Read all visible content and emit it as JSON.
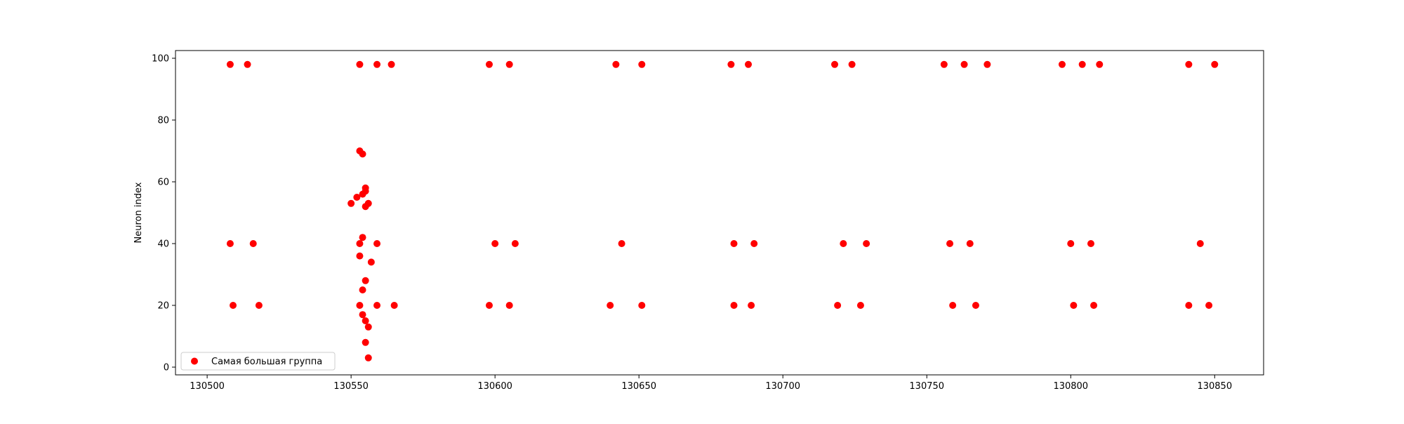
{
  "chart_data": {
    "type": "scatter",
    "title": "",
    "xlabel": "",
    "ylabel": "Neuron index",
    "xlim": [
      130489,
      130867
    ],
    "ylim": [
      -2.5,
      102.5
    ],
    "xticks": [
      130500,
      130550,
      130600,
      130650,
      130700,
      130750,
      130800,
      130850
    ],
    "xtick_labels": [
      "130500",
      "130550",
      "130600",
      "130650",
      "130700",
      "130750",
      "130800",
      "130850"
    ],
    "yticks": [
      0,
      20,
      40,
      60,
      80,
      100
    ],
    "ytick_labels": [
      "0",
      "20",
      "40",
      "60",
      "80",
      "100"
    ],
    "grid": false,
    "legend_position": "lower-left",
    "marker_color": "#ff0000",
    "series": [
      {
        "name": "Самая большая группа",
        "color": "#ff0000",
        "points": [
          [
            130508,
            98
          ],
          [
            130514,
            98
          ],
          [
            130508,
            40
          ],
          [
            130516,
            40
          ],
          [
            130509,
            20
          ],
          [
            130518,
            20
          ],
          [
            130553,
            98
          ],
          [
            130559,
            98
          ],
          [
            130564,
            98
          ],
          [
            130550,
            53
          ],
          [
            130552,
            55
          ],
          [
            130553,
            70
          ],
          [
            130554,
            69
          ],
          [
            130554,
            56
          ],
          [
            130555,
            52
          ],
          [
            130555,
            57
          ],
          [
            130555,
            58
          ],
          [
            130556,
            53
          ],
          [
            130553,
            40
          ],
          [
            130554,
            42
          ],
          [
            130559,
            40
          ],
          [
            130553,
            36
          ],
          [
            130557,
            34
          ],
          [
            130555,
            28
          ],
          [
            130554,
            25
          ],
          [
            130553,
            20
          ],
          [
            130559,
            20
          ],
          [
            130565,
            20
          ],
          [
            130554,
            17
          ],
          [
            130555,
            15
          ],
          [
            130556,
            13
          ],
          [
            130555,
            8
          ],
          [
            130556,
            3
          ],
          [
            130598,
            98
          ],
          [
            130605,
            98
          ],
          [
            130600,
            40
          ],
          [
            130607,
            40
          ],
          [
            130598,
            20
          ],
          [
            130605,
            20
          ],
          [
            130642,
            98
          ],
          [
            130651,
            98
          ],
          [
            130644,
            40
          ],
          [
            130640,
            20
          ],
          [
            130651,
            20
          ],
          [
            130682,
            98
          ],
          [
            130688,
            98
          ],
          [
            130683,
            40
          ],
          [
            130690,
            40
          ],
          [
            130683,
            20
          ],
          [
            130689,
            20
          ],
          [
            130718,
            98
          ],
          [
            130724,
            98
          ],
          [
            130721,
            40
          ],
          [
            130729,
            40
          ],
          [
            130719,
            20
          ],
          [
            130727,
            20
          ],
          [
            130756,
            98
          ],
          [
            130763,
            98
          ],
          [
            130771,
            98
          ],
          [
            130758,
            40
          ],
          [
            130765,
            40
          ],
          [
            130759,
            20
          ],
          [
            130767,
            20
          ],
          [
            130797,
            98
          ],
          [
            130804,
            98
          ],
          [
            130810,
            98
          ],
          [
            130800,
            40
          ],
          [
            130807,
            40
          ],
          [
            130801,
            20
          ],
          [
            130808,
            20
          ],
          [
            130841,
            98
          ],
          [
            130850,
            98
          ],
          [
            130845,
            40
          ],
          [
            130841,
            20
          ],
          [
            130848,
            20
          ]
        ]
      }
    ]
  }
}
